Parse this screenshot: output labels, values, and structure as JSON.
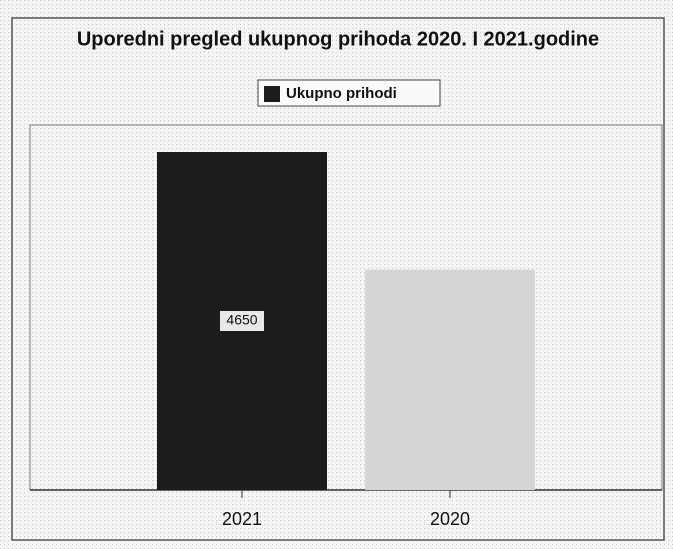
{
  "chart_data": {
    "type": "bar",
    "title": "Uporedni pregled ukupnog prihoda 2020. I 2021.godine",
    "categories": [
      "2021",
      "2020"
    ],
    "series": [
      {
        "name": "Ukupno prihodi",
        "color": "#1c1c1c",
        "values": [
          4650,
          3030
        ],
        "value_labels": [
          "4650",
          null
        ]
      }
    ],
    "colors": [
      "#1c1c1c",
      "#d6d6d6"
    ],
    "legend": "top"
  }
}
